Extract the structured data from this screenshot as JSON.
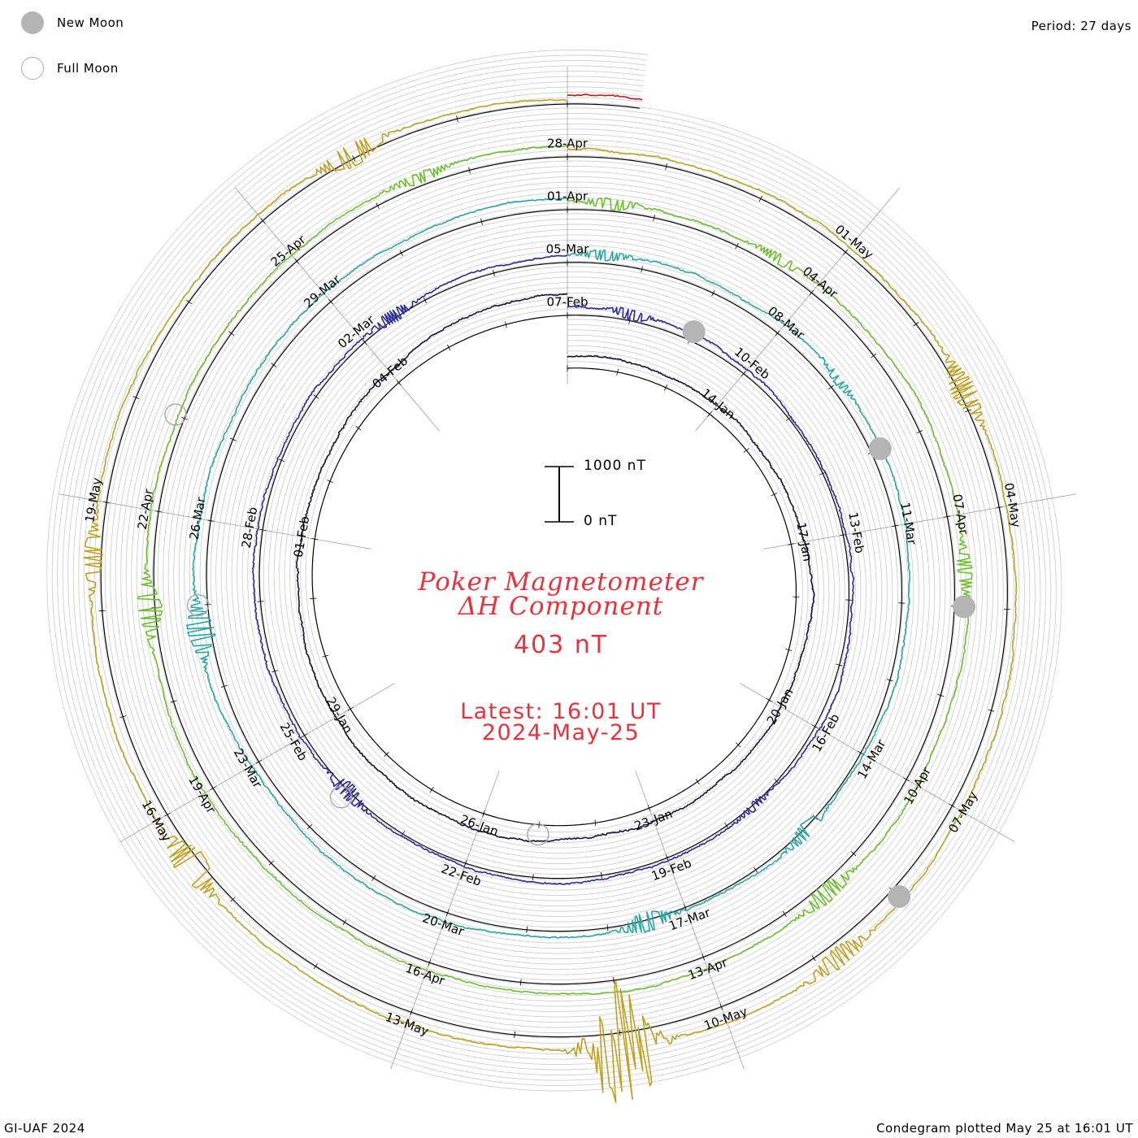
{
  "legend": {
    "new_moon_label": "New Moon",
    "full_moon_label": "Full Moon",
    "new_moon_color": "#b4b4b4",
    "full_moon_color": "#aaaaaa"
  },
  "header": {
    "period": "Period: 27 days"
  },
  "footer": {
    "credit": "GI-UAF 2024",
    "plotted": "Condegram plotted May 25 at 16:01 UT"
  },
  "title": {
    "line1": "Poker Magnetometer",
    "line2": "ΔH Component",
    "current_value": "403 nT",
    "latest_time": "Latest: 16:01 UT",
    "latest_date": "2024-May-25",
    "color": "#e8323c"
  },
  "scale": {
    "top_label": "1000 nT",
    "bottom_label": "0 nT"
  },
  "chart_data": {
    "type": "line",
    "subtype": "polar spiral condegram",
    "period_days": 27,
    "start_date": "2024-01-11",
    "end_date": "2024-05-25",
    "scale_nt": [
      0,
      1000
    ],
    "date_labels": [
      {
        "text": "14-Jan",
        "day": 3
      },
      {
        "text": "17-Jan",
        "day": 6
      },
      {
        "text": "20-Jan",
        "day": 9
      },
      {
        "text": "23-Jan",
        "day": 12
      },
      {
        "text": "26-Jan",
        "day": 15
      },
      {
        "text": "29-Jan",
        "day": 18
      },
      {
        "text": "01-Feb",
        "day": 21
      },
      {
        "text": "04-Feb",
        "day": 24
      },
      {
        "text": "07-Feb",
        "day": 27
      },
      {
        "text": "10-Feb",
        "day": 30
      },
      {
        "text": "13-Feb",
        "day": 33
      },
      {
        "text": "16-Feb",
        "day": 36
      },
      {
        "text": "19-Feb",
        "day": 39
      },
      {
        "text": "22-Feb",
        "day": 42
      },
      {
        "text": "25-Feb",
        "day": 45
      },
      {
        "text": "28-Feb",
        "day": 48
      },
      {
        "text": "02-Mar",
        "day": 51
      },
      {
        "text": "05-Mar",
        "day": 54
      },
      {
        "text": "08-Mar",
        "day": 57
      },
      {
        "text": "11-Mar",
        "day": 60
      },
      {
        "text": "14-Mar",
        "day": 63
      },
      {
        "text": "17-Mar",
        "day": 66
      },
      {
        "text": "20-Mar",
        "day": 69
      },
      {
        "text": "23-Mar",
        "day": 72
      },
      {
        "text": "26-Mar",
        "day": 75
      },
      {
        "text": "29-Mar",
        "day": 78
      },
      {
        "text": "01-Apr",
        "day": 81
      },
      {
        "text": "04-Apr",
        "day": 84
      },
      {
        "text": "07-Apr",
        "day": 87
      },
      {
        "text": "10-Apr",
        "day": 90
      },
      {
        "text": "13-Apr",
        "day": 93
      },
      {
        "text": "16-Apr",
        "day": 96
      },
      {
        "text": "19-Apr",
        "day": 99
      },
      {
        "text": "22-Apr",
        "day": 102
      },
      {
        "text": "25-Apr",
        "day": 105
      },
      {
        "text": "28-Apr",
        "day": 108
      },
      {
        "text": "01-May",
        "day": 111
      },
      {
        "text": "04-May",
        "day": 114
      },
      {
        "text": "07-May",
        "day": 117
      },
      {
        "text": "10-May",
        "day": 120
      },
      {
        "text": "13-May",
        "day": 123
      },
      {
        "text": "16-May",
        "day": 126
      },
      {
        "text": "19-May",
        "day": 129
      }
    ],
    "new_moons": [
      "2024-02-09",
      "2024-03-10",
      "2024-04-08",
      "2024-05-08"
    ],
    "full_moons": [
      "2024-01-25",
      "2024-02-24",
      "2024-03-25",
      "2024-04-23"
    ],
    "series": [
      {
        "start": "2024-01-11",
        "days": 27,
        "color": "#14143c",
        "baseline_nt": 200
      },
      {
        "start": "2024-02-07",
        "days": 27,
        "color": "#2a2a9a",
        "baseline_nt": 150
      },
      {
        "start": "2024-03-05",
        "days": 27,
        "color": "#2aa6a6",
        "baseline_nt": 150
      },
      {
        "start": "2024-04-01",
        "days": 27,
        "color": "#6cbe2e",
        "baseline_nt": 150
      },
      {
        "start": "2024-04-28",
        "days": 27,
        "color": "#c0a020",
        "baseline_nt": 150
      },
      {
        "start": "2024-05-25",
        "days": 0.67,
        "color": "#c01818",
        "baseline_nt": 150
      }
    ],
    "disturbances": [
      {
        "day": 28.0,
        "amp_nt": 120
      },
      {
        "day": 37.5,
        "amp_nt": 80
      },
      {
        "day": 44.0,
        "amp_nt": 180
      },
      {
        "day": 51.5,
        "amp_nt": 140
      },
      {
        "day": 54.5,
        "amp_nt": 110
      },
      {
        "day": 58.0,
        "amp_nt": 90
      },
      {
        "day": 64.2,
        "amp_nt": 160
      },
      {
        "day": 66.5,
        "amp_nt": 220
      },
      {
        "day": 73.7,
        "amp_nt": 300
      },
      {
        "day": 81.5,
        "amp_nt": 120
      },
      {
        "day": 83.5,
        "amp_nt": 110
      },
      {
        "day": 87.6,
        "amp_nt": 160
      },
      {
        "day": 91.5,
        "amp_nt": 200
      },
      {
        "day": 101.0,
        "amp_nt": 260
      },
      {
        "day": 106.5,
        "amp_nt": 120
      },
      {
        "day": 112.8,
        "amp_nt": 260
      },
      {
        "day": 118.8,
        "amp_nt": 220
      },
      {
        "day": 121.0,
        "amp_nt": 1300
      },
      {
        "day": 125.5,
        "amp_nt": 350
      },
      {
        "day": 128.5,
        "amp_nt": 200
      },
      {
        "day": 133.0,
        "amp_nt": 250
      }
    ],
    "grid": true,
    "legend_position": "top-left"
  }
}
